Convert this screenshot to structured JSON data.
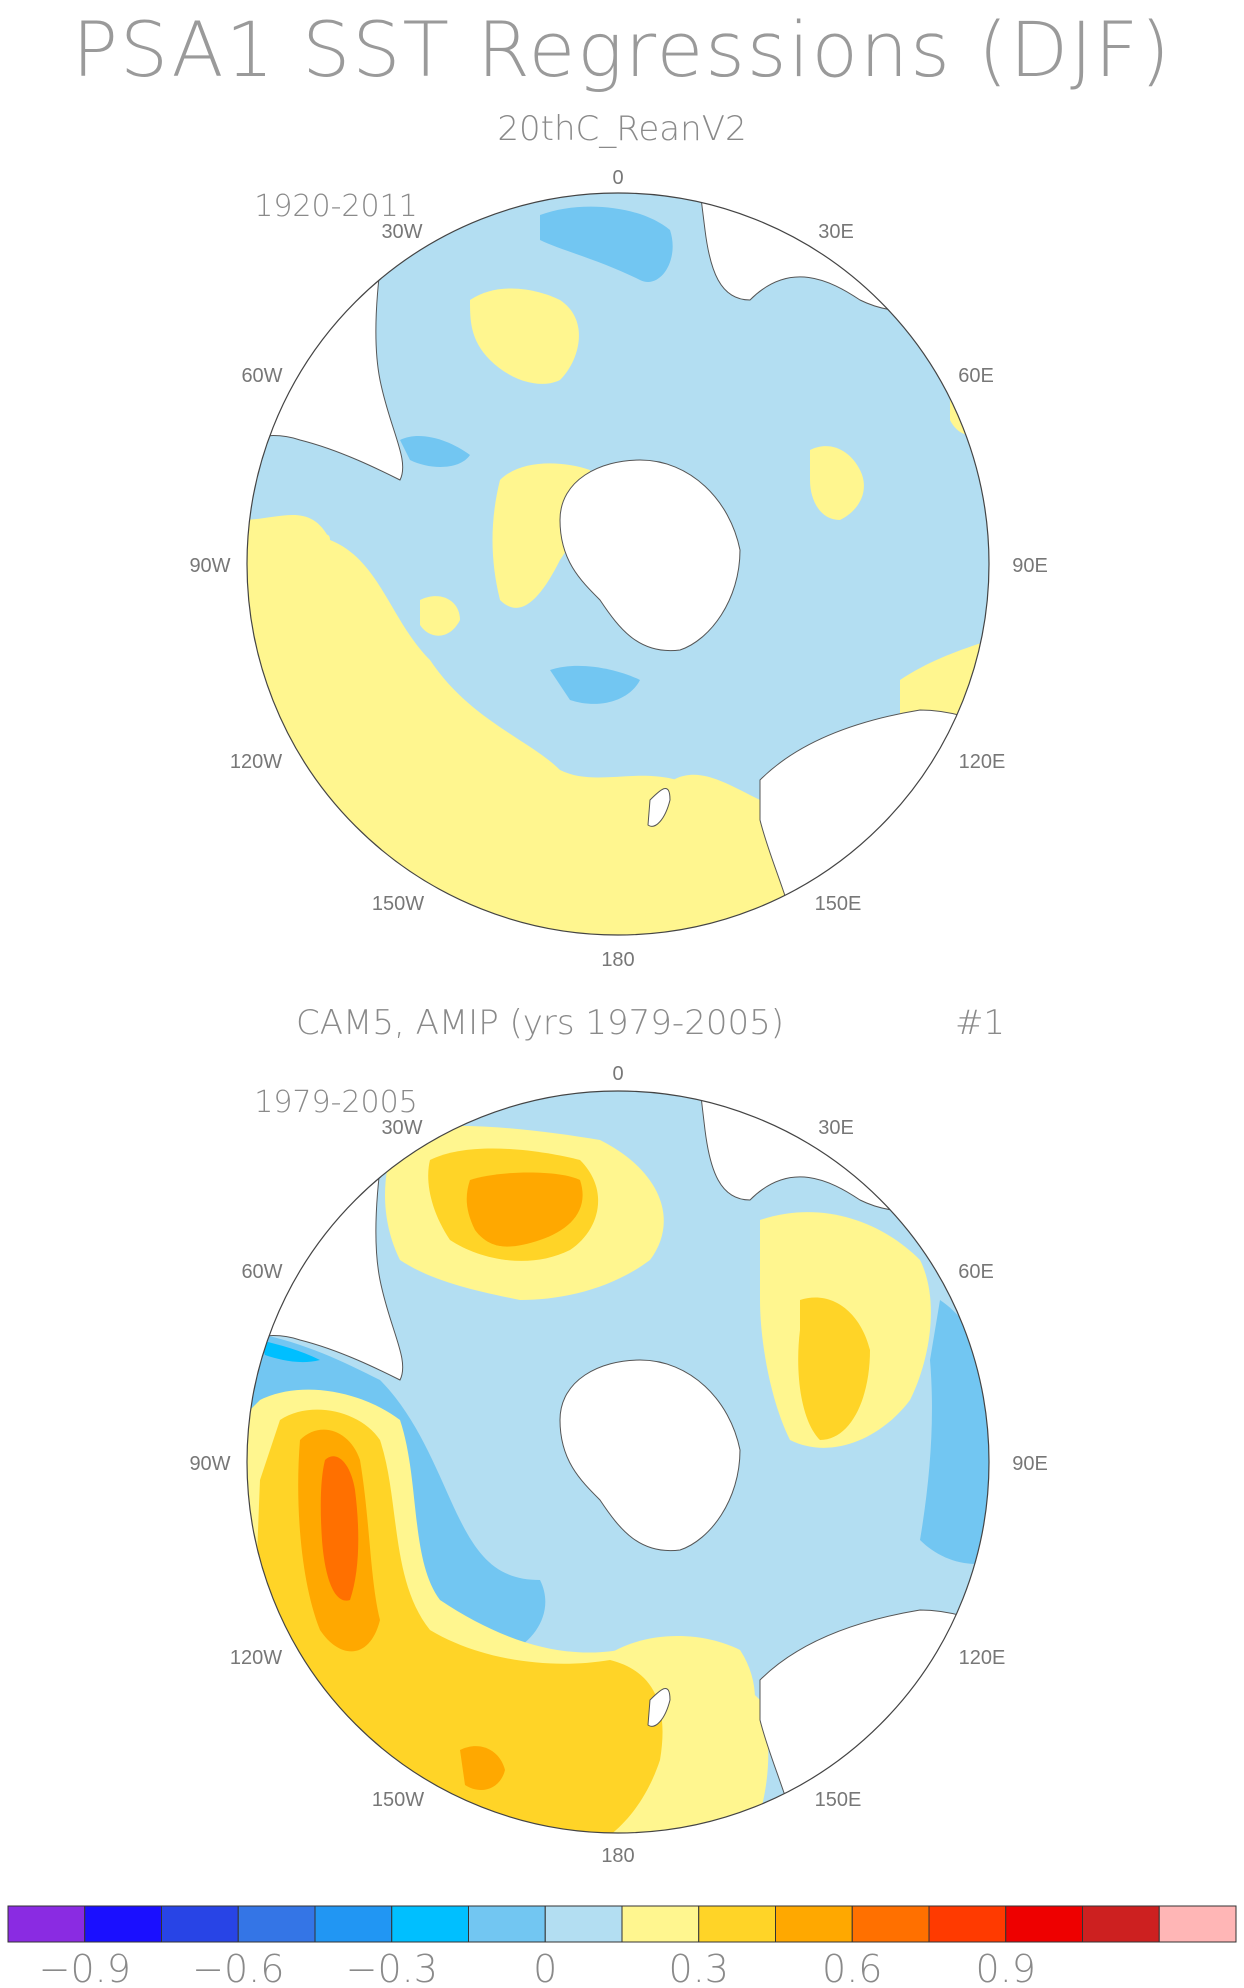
{
  "figure": {
    "title": "PSA1 SST Regressions (DJF)",
    "panels": [
      {
        "title": "20thC_ReanV2",
        "period": "1920-2011",
        "tag": "",
        "projection": "south-polar-stereographic"
      },
      {
        "title": "CAM5, AMIP (yrs 1979-2005)",
        "period": "1979-2005",
        "tag": "#1",
        "projection": "south-polar-stereographic"
      }
    ],
    "longitude_labels": [
      "0",
      "30E",
      "60E",
      "90E",
      "120E",
      "150E",
      "180",
      "150W",
      "120W",
      "90W",
      "60W",
      "30W"
    ]
  },
  "colorbar": {
    "colors": [
      "#8a2be2",
      "#1a0fff",
      "#2844e6",
      "#3475e6",
      "#2196f3",
      "#00bfff",
      "#72c6f2",
      "#b3def2",
      "#fff68f",
      "#ffd427",
      "#ffa800",
      "#ff7000",
      "#ff3a00",
      "#ee0000",
      "#cd2020",
      "#ffb6b6"
    ],
    "tick_labels": [
      "−0.9",
      "−0.6",
      "−0.3",
      "0",
      "0.3",
      "0.6",
      "0.9"
    ],
    "tick_values": [
      -0.9,
      -0.6,
      -0.3,
      0,
      0.3,
      0.6,
      0.9
    ]
  }
}
